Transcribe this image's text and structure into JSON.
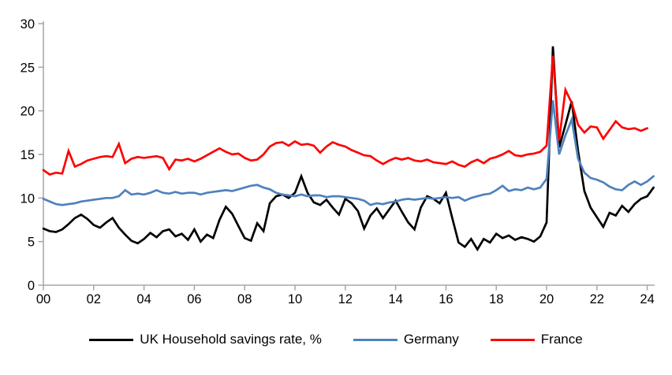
{
  "chart_data": {
    "type": "line",
    "title": "",
    "x_start": 2000,
    "x_step_years": 0.25,
    "xlim": [
      2000,
      2024.6
    ],
    "ylim": [
      0,
      30
    ],
    "y_ticks": [
      0,
      5,
      10,
      15,
      20,
      25,
      30
    ],
    "x_tick_labels": [
      "00",
      "02",
      "04",
      "06",
      "08",
      "10",
      "12",
      "14",
      "16",
      "18",
      "20",
      "22",
      "24"
    ],
    "x_tick_years": [
      2000,
      2002,
      2004,
      2006,
      2008,
      2010,
      2012,
      2014,
      2016,
      2018,
      2020,
      2022,
      2024
    ],
    "grid": false,
    "legend_position": "bottom",
    "axis_color": "#A6A6A6",
    "label_color": "#000000",
    "background": "#FFFFFF",
    "series": [
      {
        "name": "UK Household savings rate, %",
        "color": "#000000",
        "values": [
          6.5,
          6.2,
          6.1,
          6.4,
          7.0,
          7.7,
          8.1,
          7.6,
          6.9,
          6.6,
          7.2,
          7.7,
          6.6,
          5.8,
          5.1,
          4.8,
          5.3,
          6.0,
          5.5,
          6.2,
          6.4,
          5.6,
          5.9,
          5.2,
          6.4,
          5.0,
          5.8,
          5.4,
          7.5,
          9.0,
          8.2,
          6.8,
          5.4,
          5.1,
          7.1,
          6.2,
          9.4,
          10.2,
          10.4,
          10.0,
          10.6,
          12.5,
          10.6,
          9.5,
          9.2,
          9.8,
          8.9,
          8.1,
          9.9,
          9.4,
          8.5,
          6.5,
          8.0,
          8.8,
          7.7,
          8.7,
          9.7,
          8.4,
          7.2,
          6.4,
          8.9,
          10.2,
          9.9,
          9.4,
          10.6,
          7.7,
          4.9,
          4.4,
          5.3,
          4.1,
          5.3,
          4.9,
          5.9,
          5.4,
          5.7,
          5.2,
          5.5,
          5.3,
          5.0,
          5.6,
          7.2,
          27.4,
          15.8,
          18.4,
          21.1,
          15.4,
          10.8,
          8.9,
          7.8,
          6.7,
          8.3,
          8.0,
          9.1,
          8.4,
          9.3,
          9.9,
          10.2,
          11.2
        ]
      },
      {
        "name": "Germany",
        "color": "#4F81BD",
        "values": [
          9.9,
          9.6,
          9.3,
          9.2,
          9.3,
          9.4,
          9.6,
          9.7,
          9.8,
          9.9,
          10.0,
          10.0,
          10.2,
          10.9,
          10.4,
          10.5,
          10.4,
          10.6,
          10.9,
          10.6,
          10.5,
          10.7,
          10.5,
          10.6,
          10.6,
          10.4,
          10.6,
          10.7,
          10.8,
          10.9,
          10.8,
          11.0,
          11.2,
          11.4,
          11.5,
          11.2,
          11.0,
          10.6,
          10.4,
          10.3,
          10.2,
          10.4,
          10.2,
          10.3,
          10.3,
          10.1,
          10.2,
          10.2,
          10.1,
          10.0,
          9.9,
          9.7,
          9.2,
          9.4,
          9.3,
          9.5,
          9.6,
          9.8,
          9.9,
          9.8,
          9.9,
          10.0,
          9.9,
          10.0,
          10.1,
          10.0,
          10.1,
          9.7,
          10.0,
          10.2,
          10.4,
          10.5,
          10.9,
          11.4,
          10.8,
          11.0,
          10.9,
          11.2,
          11.0,
          11.2,
          12.2,
          21.2,
          15.0,
          17.2,
          19.0,
          14.5,
          12.9,
          12.3,
          12.1,
          11.8,
          11.3,
          11.0,
          10.9,
          11.5,
          11.9,
          11.5,
          11.9,
          12.5
        ]
      },
      {
        "name": "France",
        "color": "#FF0000",
        "values": [
          13.2,
          12.7,
          12.9,
          12.8,
          15.4,
          13.6,
          13.9,
          14.3,
          14.5,
          14.7,
          14.8,
          14.7,
          16.2,
          14.0,
          14.5,
          14.7,
          14.6,
          14.7,
          14.8,
          14.6,
          13.3,
          14.4,
          14.3,
          14.5,
          14.2,
          14.5,
          14.9,
          15.3,
          15.7,
          15.3,
          15.0,
          15.1,
          14.6,
          14.3,
          14.4,
          15.0,
          15.9,
          16.3,
          16.4,
          16.0,
          16.5,
          16.1,
          16.2,
          16.0,
          15.2,
          15.9,
          16.4,
          16.1,
          15.9,
          15.5,
          15.2,
          14.9,
          14.8,
          14.3,
          13.9,
          14.3,
          14.6,
          14.4,
          14.6,
          14.3,
          14.2,
          14.4,
          14.1,
          14.0,
          13.9,
          14.2,
          13.8,
          13.6,
          14.1,
          14.4,
          14.0,
          14.5,
          14.7,
          15.0,
          15.4,
          14.9,
          14.8,
          15.0,
          15.1,
          15.3,
          16.0,
          26.3,
          16.6,
          22.4,
          20.9,
          18.4,
          17.5,
          18.2,
          18.1,
          16.8,
          17.8,
          18.8,
          18.1,
          17.9,
          18.0,
          17.7,
          18.0
        ]
      }
    ]
  }
}
